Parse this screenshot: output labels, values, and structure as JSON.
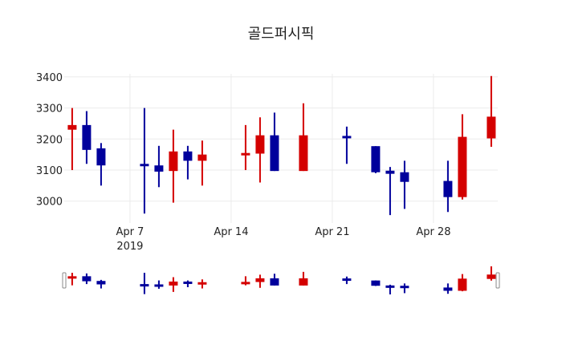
{
  "title": "골드퍼시픽",
  "colors": {
    "increasing": "#d40000",
    "decreasing": "#00009c",
    "grid": "#ebebeb",
    "handle": "#888888"
  },
  "chart_data": {
    "type": "candlestick",
    "title": "골드퍼시픽",
    "xlabel": "",
    "ylabel": "",
    "ylim": [
      2945,
      3410
    ],
    "xlim_days_from_apr7": [
      -4.55,
      25.45
    ],
    "x_ticks": [
      {
        "label": "Apr 7",
        "sub": "2019",
        "day": 0
      },
      {
        "label": "Apr 14",
        "sub": "",
        "day": 7
      },
      {
        "label": "Apr 21",
        "sub": "",
        "day": 14
      },
      {
        "label": "Apr 28",
        "sub": "",
        "day": 21
      }
    ],
    "y_ticks": [
      3000,
      3100,
      3200,
      3300,
      3400
    ],
    "grid": true,
    "rangeslider": true,
    "candles": [
      {
        "date": "2019-04-03",
        "day": -4,
        "open": 3230,
        "high": 3300,
        "low": 3100,
        "close": 3245
      },
      {
        "date": "2019-04-04",
        "day": -3,
        "open": 3245,
        "high": 3290,
        "low": 3120,
        "close": 3165
      },
      {
        "date": "2019-04-05",
        "day": -2,
        "open": 3170,
        "high": 3187,
        "low": 3050,
        "close": 3115
      },
      {
        "date": "2019-04-08",
        "day": 1,
        "open": 3120,
        "high": 3300,
        "low": 2960,
        "close": 3113
      },
      {
        "date": "2019-04-09",
        "day": 2,
        "open": 3115,
        "high": 3178,
        "low": 3045,
        "close": 3095
      },
      {
        "date": "2019-04-10",
        "day": 3,
        "open": 3097,
        "high": 3230,
        "low": 2995,
        "close": 3160
      },
      {
        "date": "2019-04-11",
        "day": 4,
        "open": 3160,
        "high": 3178,
        "low": 3070,
        "close": 3130
      },
      {
        "date": "2019-04-12",
        "day": 5,
        "open": 3130,
        "high": 3195,
        "low": 3050,
        "close": 3150
      },
      {
        "date": "2019-04-15",
        "day": 8,
        "open": 3148,
        "high": 3245,
        "low": 3100,
        "close": 3155
      },
      {
        "date": "2019-04-16",
        "day": 9,
        "open": 3153,
        "high": 3270,
        "low": 3060,
        "close": 3212
      },
      {
        "date": "2019-04-17",
        "day": 10,
        "open": 3212,
        "high": 3285,
        "low": 3097,
        "close": 3097
      },
      {
        "date": "2019-04-19",
        "day": 12,
        "open": 3097,
        "high": 3315,
        "low": 3097,
        "close": 3212
      },
      {
        "date": "2019-04-22",
        "day": 15,
        "open": 3210,
        "high": 3240,
        "low": 3120,
        "close": 3203
      },
      {
        "date": "2019-04-24",
        "day": 17,
        "open": 3177,
        "high": 3177,
        "low": 3090,
        "close": 3093
      },
      {
        "date": "2019-04-25",
        "day": 18,
        "open": 3098,
        "high": 3110,
        "low": 2955,
        "close": 3088
      },
      {
        "date": "2019-04-26",
        "day": 19,
        "open": 3093,
        "high": 3130,
        "low": 2975,
        "close": 3062
      },
      {
        "date": "2019-04-29",
        "day": 22,
        "open": 3065,
        "high": 3130,
        "low": 2965,
        "close": 3013
      },
      {
        "date": "2019-04-30",
        "day": 23,
        "open": 3013,
        "high": 3280,
        "low": 3005,
        "close": 3207
      },
      {
        "date": "2019-05-02",
        "day": 25,
        "open": 3202,
        "high": 3403,
        "low": 3175,
        "close": 3272
      }
    ]
  }
}
